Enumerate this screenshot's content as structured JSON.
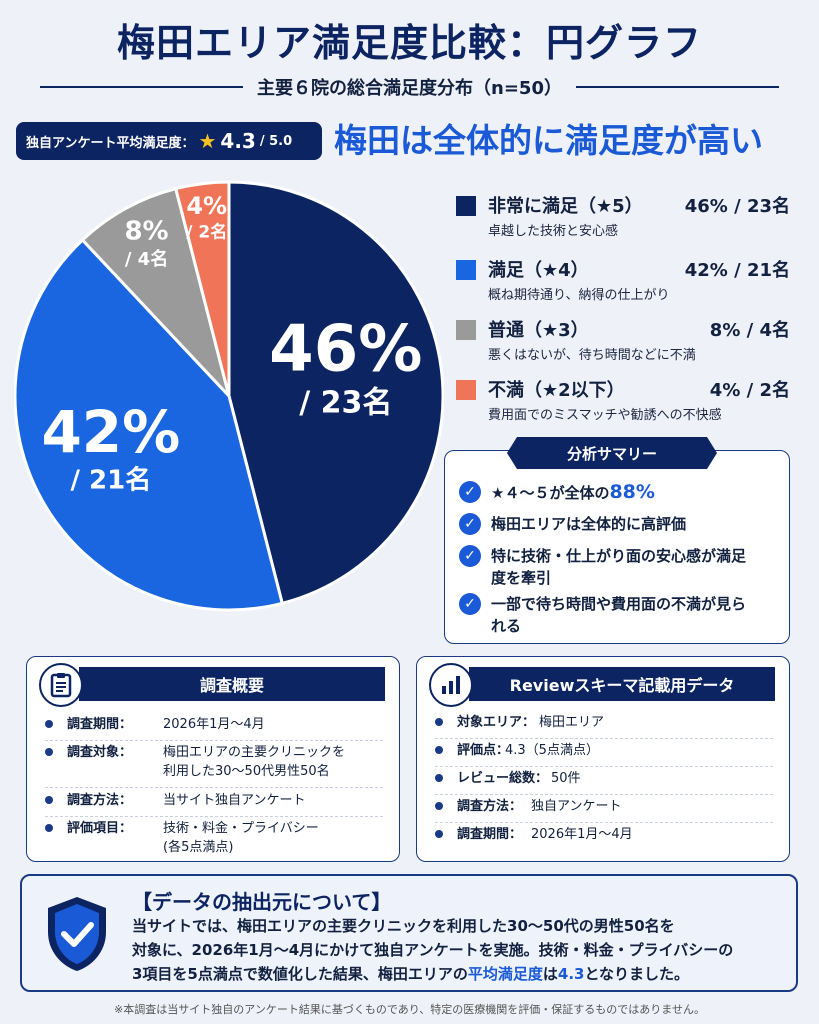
{
  "title": "梅田エリア満足度比較：円グラフ",
  "subtitle": "主要６院の総合満足度分布（n=50）",
  "avg_badge": {
    "label": "独自アンケート平均満足度：",
    "star": "★",
    "score": "4.3",
    "max": "/ 5.0"
  },
  "headline": "梅田は全体的に満足度が高い",
  "colors": {
    "very_satisfied": "#0c2461",
    "satisfied": "#1a66e0",
    "neutral": "#9a9a9a",
    "dissatisfied": "#f07457",
    "navy": "#0c2461",
    "accent": "#1a5ad7"
  },
  "chart_data": {
    "type": "pie",
    "slices": [
      {
        "key": "very_satisfied",
        "legend": "非常に満足（★5）",
        "percent": 46,
        "count": 23,
        "pct_label": "46%",
        "count_label": "/ 23名",
        "legend_value": "46% / 23名",
        "desc": "卓越した技術と安心感"
      },
      {
        "key": "satisfied",
        "legend": "満足（★4）",
        "percent": 42,
        "count": 21,
        "pct_label": "42%",
        "count_label": "/ 21名",
        "legend_value": "42% / 21名",
        "desc": "概ね期待通り、納得の仕上がり"
      },
      {
        "key": "neutral",
        "legend": "普通（★3）",
        "percent": 8,
        "count": 4,
        "pct_label": "8%",
        "count_label": "/ 4名",
        "legend_value": "8% / 4名",
        "desc": "悪くはないが、待ち時間などに不満"
      },
      {
        "key": "dissatisfied",
        "legend": "不満（★2以下）",
        "percent": 4,
        "count": 2,
        "pct_label": "4%",
        "count_label": "/ 2名",
        "legend_value": "4% / 2名",
        "desc": "費用面でのミスマッチや勧誘への不快感"
      }
    ]
  },
  "summary": {
    "title": "分析サマリー",
    "item1_pre": "★４～５が全体の",
    "item1_hl": "88%",
    "item2": "梅田エリアは全体的に高評価",
    "item3": "特に技術・仕上がり面の安心感が満足度を牽引",
    "item4": "一部で待ち時間や費用面の不満が見られる"
  },
  "survey": {
    "title": "調査概要",
    "rows": [
      {
        "k": "調査期間：",
        "v": "2026年1月～4月"
      },
      {
        "k": "調査対象：",
        "v": "梅田エリアの主要クリニックを",
        "v2": "利用した30～50代男性50名"
      },
      {
        "k": "調査方法：",
        "v": "当サイト独自アンケート"
      },
      {
        "k": "評価項目：",
        "v": "技術・料金・プライバシー",
        "v2": "(各5点満点)"
      }
    ]
  },
  "review": {
    "title": "Reviewスキーマ記載用データ",
    "rows": [
      {
        "k": "対象エリア：",
        "v": "梅田エリア"
      },
      {
        "k": "評価点：",
        "v": "4.3（5点満点）"
      },
      {
        "k": "レビュー総数：",
        "v": "50件"
      },
      {
        "k": "調査方法：",
        "v": "独自アンケート"
      },
      {
        "k": "調査期間：",
        "v": "2026年1月～4月"
      }
    ]
  },
  "source": {
    "title": "【データの抽出元について】",
    "line1": "当サイトでは、梅田エリアの主要クリニックを利用した30～50代の男性50名を",
    "line2": "対象に、2026年1月～4月にかけて独自アンケートを実施。技術・料金・プライバシーの",
    "line3_pre": "3項目を5点満点で数値化した結果、梅田エリアの",
    "line3_hl1": "平均満足度",
    "line3_mid": "は",
    "line3_hl2": "4.3",
    "line3_post": "となりました。"
  },
  "footnote": "※本調査は当サイト独自のアンケート結果に基づくものであり、特定の医療機関を評価・保証するものではありません。"
}
